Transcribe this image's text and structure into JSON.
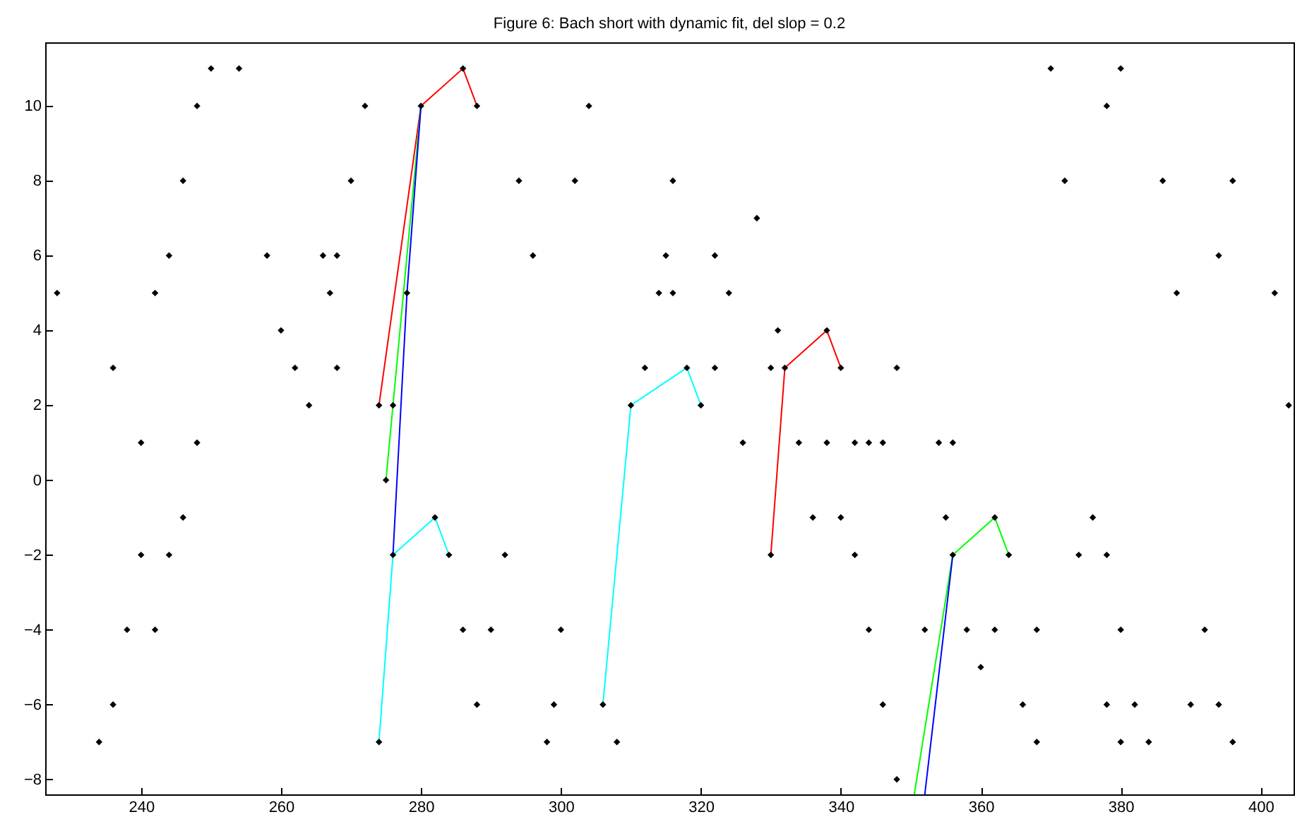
{
  "chart_data": {
    "type": "scatter",
    "title": "Figure 6: Bach short with dynamic fit, del slop = 0.2",
    "marker": "none",
    "xlim": [
      226.3,
      404.7
    ],
    "xticks": [
      240,
      260,
      280,
      300,
      320,
      340,
      360,
      380,
      400
    ],
    "ylim": [
      -8.4,
      11.7
    ],
    "yticks": [
      -8,
      -6,
      -4,
      -2,
      0,
      2,
      4,
      6,
      8,
      10
    ],
    "series": [
      {
        "type": "line",
        "color": "#ff0000",
        "x": [
          274,
          280,
          286,
          288
        ],
        "values": [
          2,
          10,
          11,
          10
        ]
      },
      {
        "type": "line",
        "color": "#00ff00",
        "x": [
          275,
          276,
          280
        ],
        "values": [
          0,
          2,
          10
        ]
      },
      {
        "type": "line",
        "color": "#0000ff",
        "x": [
          276,
          278,
          280
        ],
        "values": [
          -2,
          5,
          10
        ]
      },
      {
        "type": "line",
        "color": "#00ffff",
        "x": [
          274,
          276,
          282,
          284
        ],
        "values": [
          -7,
          -2,
          -1,
          -2
        ]
      },
      {
        "type": "line",
        "color": "#00ffff",
        "x": [
          306,
          310,
          318,
          320
        ],
        "values": [
          -6,
          2,
          3,
          2
        ]
      },
      {
        "type": "line",
        "color": "#ff0000",
        "x": [
          330,
          332,
          338,
          340
        ],
        "values": [
          -2,
          3,
          4,
          3
        ]
      },
      {
        "type": "line",
        "color": "#00ff00",
        "x": [
          350.5,
          356,
          362,
          364
        ],
        "values": [
          -8.4,
          -2,
          -1,
          -2
        ]
      },
      {
        "type": "line",
        "color": "#0000ff",
        "x": [
          352,
          356
        ],
        "values": [
          -8.4,
          -2
        ]
      },
      {
        "color": "#000000",
        "marker": "diamond",
        "x": [
          228,
          234,
          236,
          236,
          238,
          240,
          240,
          242,
          242,
          244,
          244,
          246,
          246,
          248,
          248,
          250,
          254,
          258,
          260,
          262,
          264,
          266,
          267,
          268,
          268,
          270,
          272,
          274,
          274,
          275,
          276,
          276,
          278,
          280,
          282,
          284,
          286,
          286,
          288,
          288,
          290,
          292,
          294,
          296,
          298,
          299,
          300,
          302,
          304,
          306,
          308,
          310,
          312,
          314,
          315,
          316,
          316,
          318,
          320,
          322,
          322,
          324,
          326,
          328,
          330,
          330,
          331,
          332,
          334,
          336,
          338,
          338,
          340,
          340,
          342,
          342,
          344,
          344,
          346,
          346,
          348,
          348,
          352,
          354,
          355,
          356,
          356,
          358,
          360,
          362,
          362,
          364,
          366,
          368,
          368,
          370,
          372,
          374,
          376,
          378,
          378,
          378,
          380,
          380,
          380,
          382,
          384,
          386,
          388,
          390,
          392,
          394,
          394,
          396,
          396,
          402,
          404
        ],
        "values": [
          5,
          -7,
          3,
          -6,
          -4,
          1,
          -2,
          5,
          -4,
          6,
          -2,
          8,
          -1,
          10,
          1,
          11,
          11,
          6,
          4,
          3,
          2,
          6,
          5,
          6,
          3,
          8,
          10,
          2,
          -7,
          0,
          2,
          -2,
          5,
          10,
          -1,
          -2,
          11,
          -4,
          10,
          -6,
          -4,
          -2,
          8,
          6,
          -7,
          -6,
          -4,
          8,
          10,
          -6,
          -7,
          2,
          3,
          5,
          6,
          8,
          5,
          3,
          2,
          6,
          3,
          5,
          1,
          7,
          3,
          -2,
          4,
          3,
          1,
          -1,
          4,
          1,
          3,
          -1,
          1,
          -2,
          1,
          -4,
          1,
          -6,
          3,
          -8,
          -4,
          1,
          -1,
          1,
          -2,
          -4,
          -5,
          -1,
          -4,
          -2,
          -6,
          -4,
          -7,
          11,
          8,
          -2,
          -1,
          10,
          -2,
          -6,
          11,
          -4,
          -7,
          -6,
          -7,
          8,
          5,
          -6,
          -4,
          6,
          -6,
          8,
          -7,
          5,
          2
        ]
      }
    ]
  }
}
